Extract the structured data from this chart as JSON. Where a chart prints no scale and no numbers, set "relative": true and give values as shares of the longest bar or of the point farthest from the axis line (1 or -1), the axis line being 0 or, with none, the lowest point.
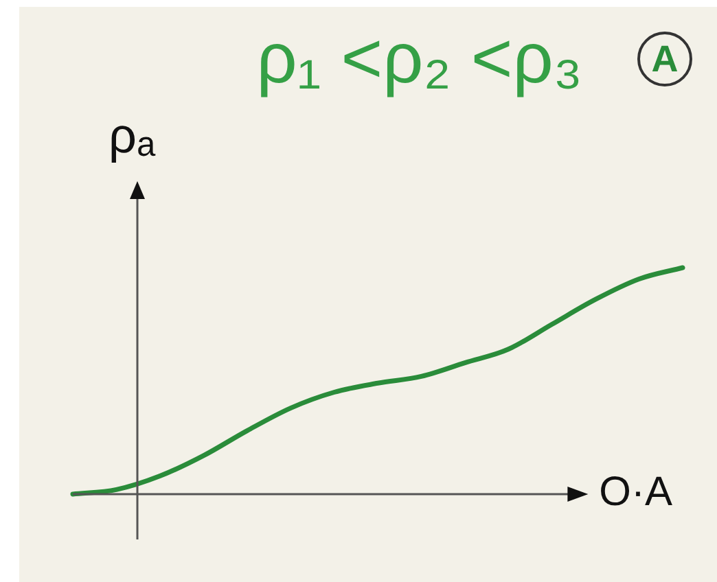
{
  "chart_data": {
    "type": "line",
    "title": "ρ₁ <ρ₂ <ρ₃",
    "annotations": [
      "A"
    ],
    "xlabel": "O·A",
    "ylabel": "ρₐ",
    "relative": true,
    "marker": "none",
    "categories": [
      null,
      null,
      null,
      null,
      null,
      null,
      null,
      null,
      null,
      null,
      null,
      null,
      null,
      null,
      null
    ],
    "series": [
      {
        "color": "#2a8c3a",
        "values": [
          0,
          0.02,
          0.08,
          0.17,
          0.28,
          0.38,
          0.45,
          0.49,
          0.52,
          0.58,
          0.64,
          0.75,
          0.86,
          0.95,
          1
        ]
      }
    ]
  }
}
